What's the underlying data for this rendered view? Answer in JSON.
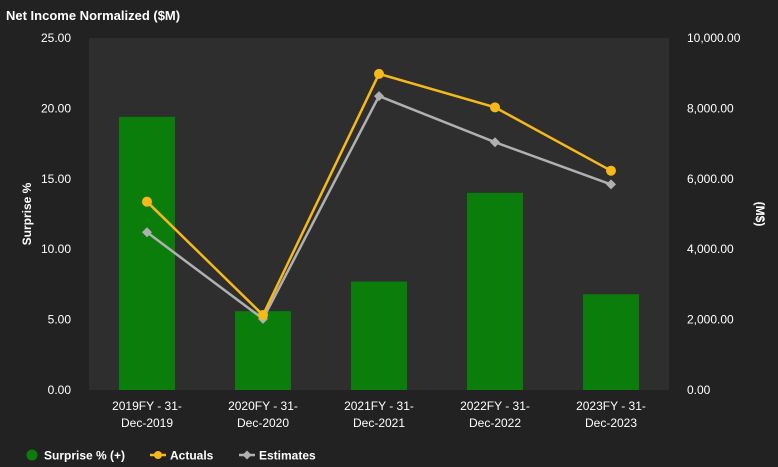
{
  "chart_data": {
    "type": "bar+line",
    "title": "Net Income Normalized ($M)",
    "categories": [
      [
        "2019FY - 31-",
        "Dec-2019"
      ],
      [
        "2020FY - 31-",
        "Dec-2020"
      ],
      [
        "2021FY - 31-",
        "Dec-2021"
      ],
      [
        "2022FY - 31-",
        "Dec-2022"
      ],
      [
        "2023FY - 31-",
        "Dec-2023"
      ]
    ],
    "left_axis": {
      "label": "Surprise %",
      "ylim": [
        0,
        25
      ],
      "ticks": [
        0,
        5,
        10,
        15,
        20,
        25
      ],
      "tick_labels": [
        "0.00",
        "5.00",
        "10.00",
        "15.00",
        "20.00",
        "25.00"
      ]
    },
    "right_axis": {
      "label": "(M$)",
      "ylim": [
        0,
        10000
      ],
      "ticks": [
        0,
        2000,
        4000,
        6000,
        8000,
        10000
      ],
      "tick_labels": [
        "0.00",
        "2,000.00",
        "4,000.00",
        "6,000.00",
        "8,000.00",
        "10,000.00"
      ]
    },
    "grid": false,
    "legend_position": "bottom-left",
    "series": [
      {
        "name": "Surprise % (+)",
        "type": "bar",
        "axis": "left",
        "color": "#0b7d0b",
        "values": [
          19.4,
          5.6,
          7.7,
          14.0,
          6.8
        ]
      },
      {
        "name": "Actuals",
        "type": "line",
        "axis": "right",
        "color": "#f6b91a",
        "marker": "circle",
        "values": [
          5350,
          2130,
          8980,
          8030,
          6230
        ]
      },
      {
        "name": "Estimates",
        "type": "line",
        "axis": "right",
        "color": "#b0b0b0",
        "marker": "diamond",
        "values": [
          4480,
          2020,
          8350,
          7040,
          5840
        ]
      }
    ]
  }
}
